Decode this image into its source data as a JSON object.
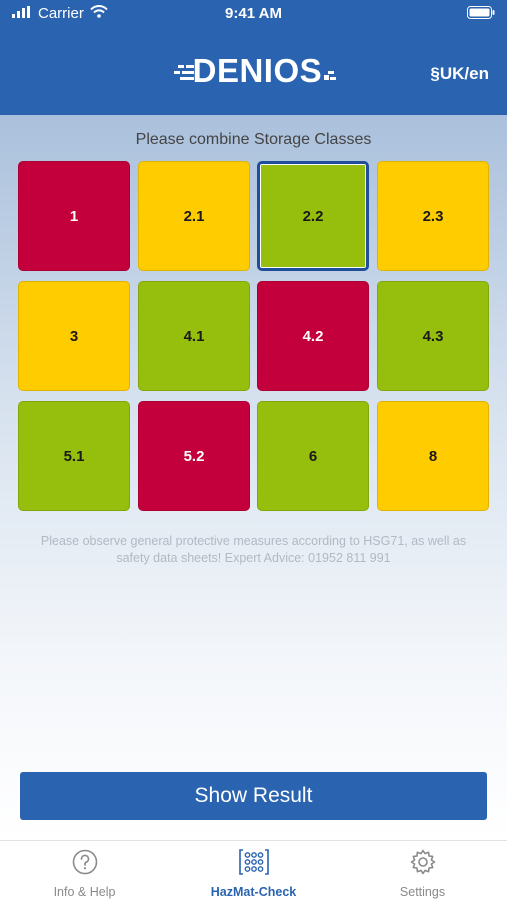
{
  "status": {
    "carrier": "Carrier",
    "time": "9:41 AM"
  },
  "header": {
    "logo_text": "DENIOS",
    "region": "§UK/en"
  },
  "main": {
    "prompt": "Please combine Storage Classes",
    "tiles": [
      {
        "label": "1",
        "color": "#c4003c"
      },
      {
        "label": "2.1",
        "color": "#ffcc00"
      },
      {
        "label": "2.2",
        "color": "#96bf0d"
      },
      {
        "label": "2.3",
        "color": "#ffcc00"
      },
      {
        "label": "3",
        "color": "#ffcc00"
      },
      {
        "label": "4.1",
        "color": "#96bf0d"
      },
      {
        "label": "4.2",
        "color": "#c4003c"
      },
      {
        "label": "4.3",
        "color": "#96bf0d"
      },
      {
        "label": "5.1",
        "color": "#96bf0d"
      },
      {
        "label": "5.2",
        "color": "#c4003c"
      },
      {
        "label": "6",
        "color": "#96bf0d"
      },
      {
        "label": "8",
        "color": "#ffcc00"
      }
    ],
    "note": "Please observe general protective measures according to HSG71, as well as safety data sheets! Expert Advice: 01952 811 991",
    "show_result_label": "Show Result"
  },
  "tabs": [
    {
      "label": "Info & Help",
      "icon": "question-circle-icon"
    },
    {
      "label": "HazMat-Check",
      "icon": "grid-dots-icon"
    },
    {
      "label": "Settings",
      "icon": "gear-icon"
    }
  ],
  "colors": {
    "brand_blue": "#2a63b0",
    "red": "#c4003c",
    "yellow": "#ffcc00",
    "green": "#96bf0d"
  }
}
